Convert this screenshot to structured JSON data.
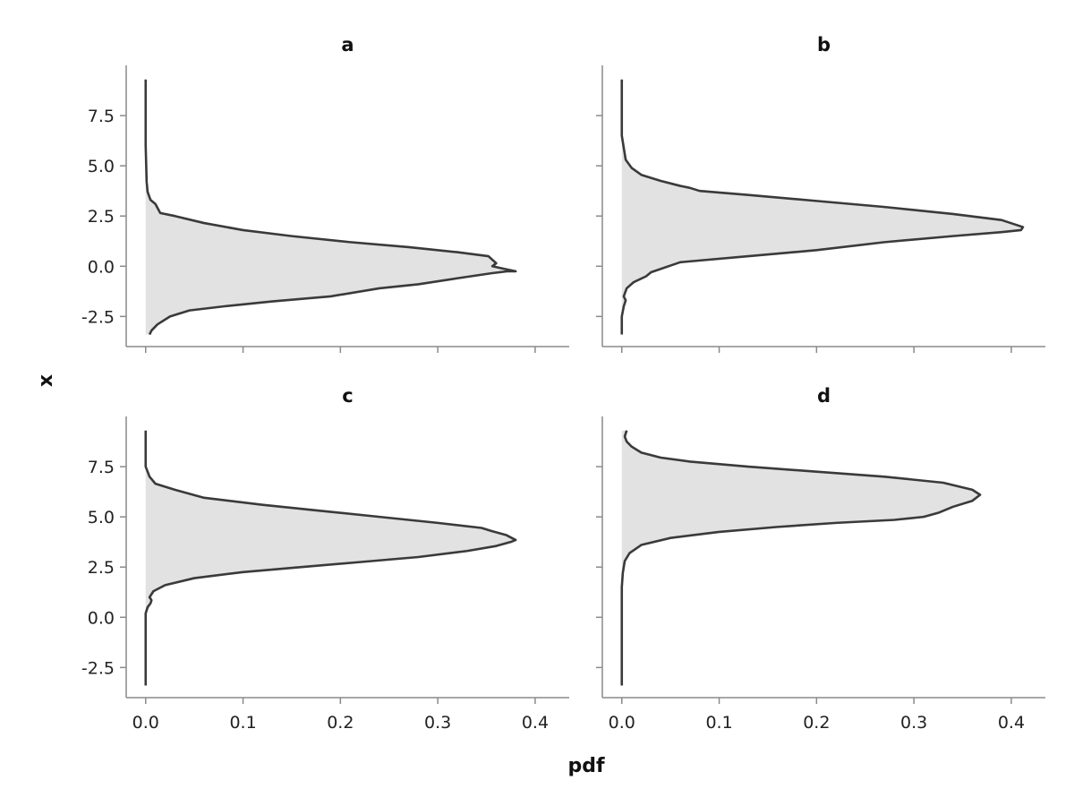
{
  "figure": {
    "xlabel": "pdf",
    "ylabel": "x"
  },
  "chart_data": [
    {
      "type": "area",
      "title": "a",
      "xlim": [
        -0.02,
        0.435
      ],
      "ylim": [
        -4.0,
        10.0
      ],
      "xticks": [
        "0.0",
        "0.1",
        "0.2",
        "0.3",
        "0.4"
      ],
      "xtick_values": [
        0,
        0.1,
        0.2,
        0.3,
        0.4
      ],
      "yticks": [
        "-2.5",
        "0.0",
        "2.5",
        "5.0",
        "7.5"
      ],
      "ytick_values": [
        -2.5,
        0,
        2.5,
        5,
        7.5
      ],
      "show_xtick_labels": false,
      "show_ytick_labels": true,
      "series": [
        {
          "x": [
            0.004,
            0.006,
            0.012,
            0.025,
            0.045,
            0.08,
            0.13,
            0.19,
            0.24,
            0.28,
            0.32,
            0.355,
            0.372,
            0.38,
            0.37,
            0.356,
            0.36,
            0.352,
            0.32,
            0.27,
            0.21,
            0.15,
            0.1,
            0.06,
            0.03,
            0.015,
            0.01,
            0.005,
            0.002,
            0.001,
            0.0,
            0.0
          ],
          "y": [
            -3.4,
            -3.2,
            -2.9,
            -2.5,
            -2.2,
            -2.0,
            -1.75,
            -1.5,
            -1.1,
            -0.9,
            -0.6,
            -0.35,
            -0.25,
            -0.25,
            -0.15,
            0.0,
            0.15,
            0.5,
            0.7,
            0.95,
            1.2,
            1.5,
            1.8,
            2.15,
            2.5,
            2.65,
            3.1,
            3.3,
            3.7,
            4.2,
            6.0,
            9.3
          ]
        }
      ]
    },
    {
      "type": "area",
      "title": "b",
      "xlim": [
        -0.02,
        0.435
      ],
      "ylim": [
        -4.0,
        10.0
      ],
      "xticks": [
        "0.0",
        "0.1",
        "0.2",
        "0.3",
        "0.4"
      ],
      "xtick_values": [
        0,
        0.1,
        0.2,
        0.3,
        0.4
      ],
      "yticks": [
        "-2.5",
        "0.0",
        "2.5",
        "5.0",
        "7.5"
      ],
      "ytick_values": [
        -2.5,
        0,
        2.5,
        5,
        7.5
      ],
      "show_xtick_labels": false,
      "show_ytick_labels": false,
      "series": [
        {
          "x": [
            0.0,
            0.0,
            0.002,
            0.004,
            0.002,
            0.005,
            0.012,
            0.025,
            0.03,
            0.06,
            0.13,
            0.2,
            0.27,
            0.34,
            0.39,
            0.41,
            0.412,
            0.39,
            0.34,
            0.27,
            0.2,
            0.13,
            0.08,
            0.07,
            0.06,
            0.04,
            0.02,
            0.01,
            0.004,
            0.0,
            0.0
          ],
          "y": [
            -3.4,
            -2.5,
            -2.0,
            -1.7,
            -1.5,
            -1.1,
            -0.8,
            -0.5,
            -0.3,
            0.2,
            0.5,
            0.8,
            1.2,
            1.5,
            1.7,
            1.8,
            1.95,
            2.3,
            2.6,
            2.95,
            3.25,
            3.55,
            3.75,
            3.9,
            4.0,
            4.25,
            4.55,
            4.9,
            5.3,
            6.5,
            9.3
          ]
        }
      ]
    },
    {
      "type": "area",
      "title": "c",
      "xlim": [
        -0.02,
        0.435
      ],
      "ylim": [
        -4.0,
        10.0
      ],
      "xticks": [
        "0.0",
        "0.1",
        "0.2",
        "0.3",
        "0.4"
      ],
      "xtick_values": [
        0,
        0.1,
        0.2,
        0.3,
        0.4
      ],
      "yticks": [
        "-2.5",
        "0.0",
        "2.5",
        "5.0",
        "7.5"
      ],
      "ytick_values": [
        -2.5,
        0,
        2.5,
        5,
        7.5
      ],
      "show_xtick_labels": true,
      "show_ytick_labels": true,
      "series": [
        {
          "x": [
            0.0,
            0.0,
            0.0,
            0.002,
            0.005,
            0.006,
            0.004,
            0.008,
            0.02,
            0.05,
            0.1,
            0.16,
            0.22,
            0.28,
            0.33,
            0.36,
            0.375,
            0.38,
            0.37,
            0.355,
            0.345,
            0.3,
            0.24,
            0.18,
            0.12,
            0.06,
            0.03,
            0.01,
            0.004,
            0.0,
            0.0
          ],
          "y": [
            -3.4,
            -1.0,
            0.2,
            0.5,
            0.7,
            0.85,
            1.0,
            1.3,
            1.6,
            1.95,
            2.25,
            2.5,
            2.75,
            3.0,
            3.3,
            3.55,
            3.75,
            3.85,
            4.1,
            4.3,
            4.45,
            4.7,
            5.0,
            5.3,
            5.6,
            5.95,
            6.35,
            6.65,
            7.0,
            7.5,
            9.3
          ]
        }
      ]
    },
    {
      "type": "area",
      "title": "d",
      "xlim": [
        -0.02,
        0.435
      ],
      "ylim": [
        -4.0,
        10.0
      ],
      "xticks": [
        "0.0",
        "0.1",
        "0.2",
        "0.3",
        "0.4"
      ],
      "xtick_values": [
        0,
        0.1,
        0.2,
        0.3,
        0.4
      ],
      "yticks": [
        "-2.5",
        "0.0",
        "2.5",
        "5.0",
        "7.5"
      ],
      "ytick_values": [
        -2.5,
        0,
        2.5,
        5,
        7.5
      ],
      "show_xtick_labels": true,
      "show_ytick_labels": false,
      "series": [
        {
          "x": [
            0.0,
            0.0,
            0.001,
            0.003,
            0.008,
            0.02,
            0.05,
            0.1,
            0.16,
            0.22,
            0.28,
            0.31,
            0.325,
            0.34,
            0.36,
            0.368,
            0.36,
            0.33,
            0.27,
            0.2,
            0.13,
            0.07,
            0.04,
            0.02,
            0.01,
            0.005,
            0.003,
            0.005
          ],
          "y": [
            -3.4,
            1.5,
            2.2,
            2.8,
            3.2,
            3.6,
            3.95,
            4.25,
            4.5,
            4.7,
            4.85,
            5.0,
            5.2,
            5.5,
            5.8,
            6.1,
            6.35,
            6.7,
            7.0,
            7.25,
            7.5,
            7.75,
            7.95,
            8.2,
            8.5,
            8.75,
            9.0,
            9.3
          ]
        }
      ]
    }
  ]
}
